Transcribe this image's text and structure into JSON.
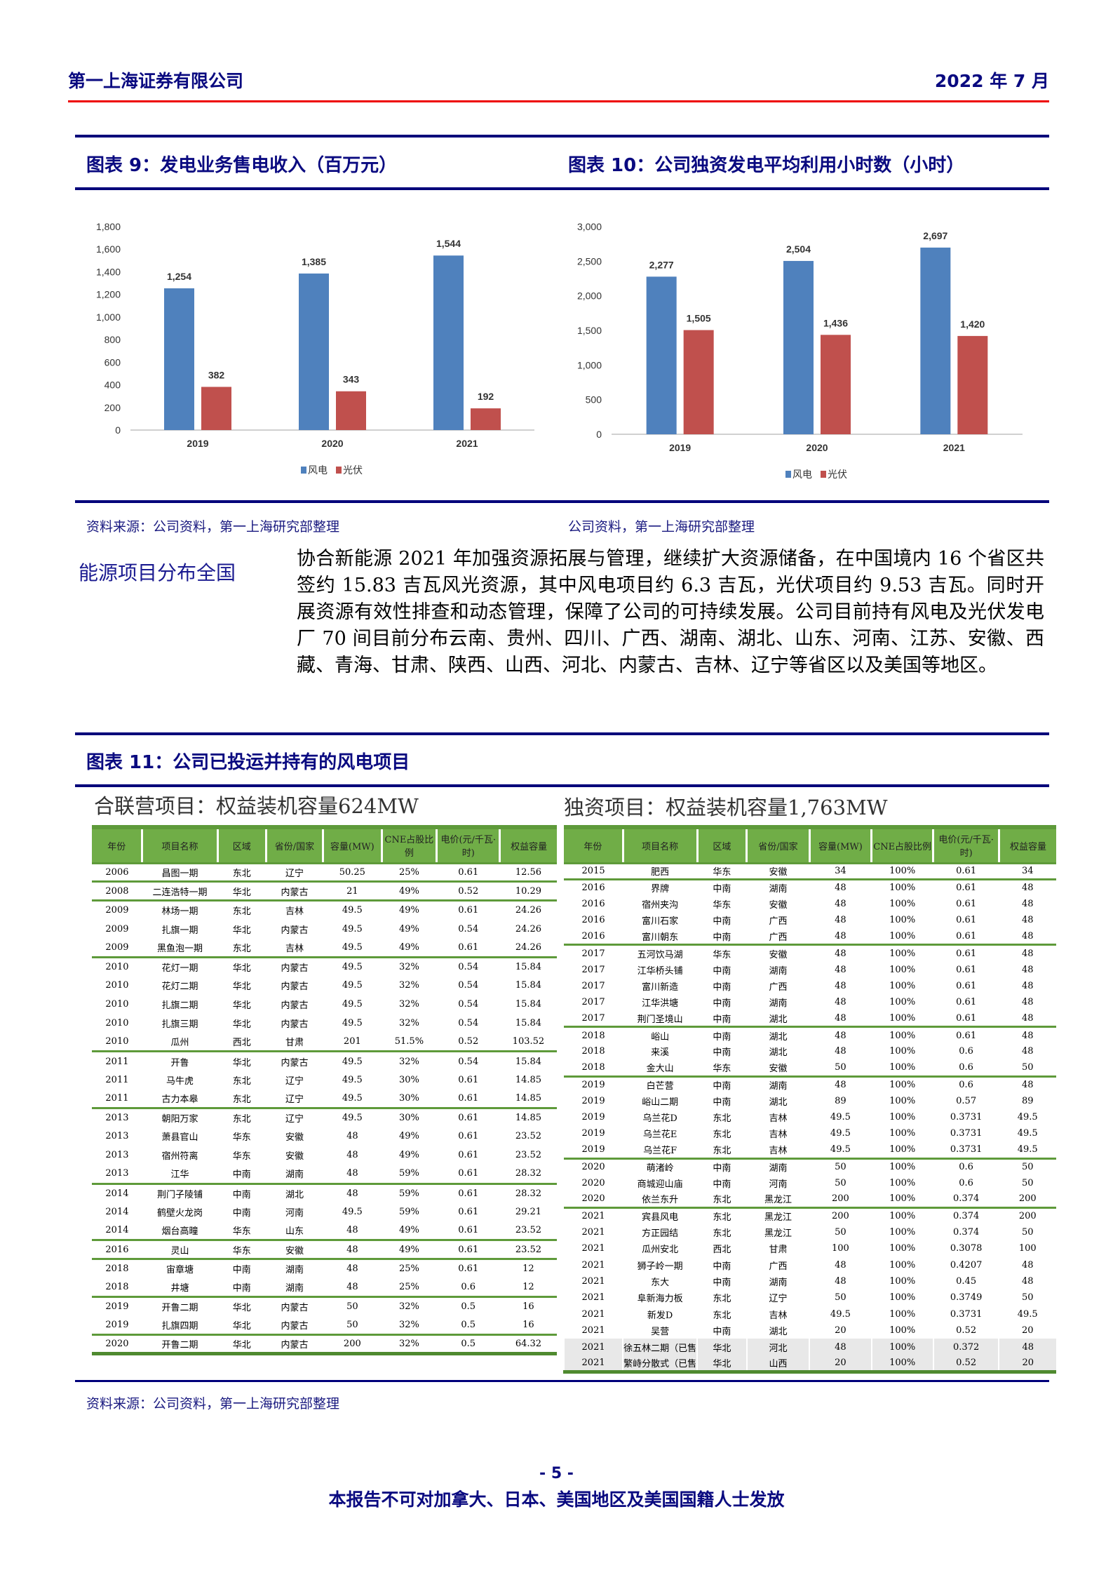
{
  "header": {
    "company": "第一上海证券有限公司",
    "date": "2022 年 7 月"
  },
  "figure9": {
    "title": "图表 9：发电业务售电收入（百万元）",
    "source": "资料来源：公司资料，第一上海研究部整理"
  },
  "figure10": {
    "title": "图表 10：公司独资发电平均利用小时数（小时）",
    "source": "公司资料，第一上海研究部整理"
  },
  "chart_data": [
    {
      "type": "bar",
      "title": "图表 9：发电业务售电收入（百万元）",
      "categories": [
        "2019",
        "2020",
        "2021"
      ],
      "series": [
        {
          "name": "风电",
          "values": [
            1254,
            1385,
            1544
          ],
          "color": "#4f81bd"
        },
        {
          "name": "光伏",
          "values": [
            382,
            343,
            192
          ],
          "color": "#c0504d"
        }
      ],
      "ylim": [
        0,
        1800
      ],
      "yticks": [
        0,
        200,
        400,
        600,
        800,
        1000,
        1200,
        1400,
        1600,
        1800
      ],
      "ytick_labels": [
        "0",
        "200",
        "400",
        "600",
        "800",
        "1,000",
        "1,200",
        "1,400",
        "1,600",
        "1,800"
      ],
      "data_labels": [
        [
          "1,254",
          "1,385",
          "1,544"
        ],
        [
          "382",
          "343",
          "192"
        ]
      ],
      "legend": "bottom",
      "grid": false
    },
    {
      "type": "bar",
      "title": "图表 10：公司独资发电平均利用小时数（小时）",
      "categories": [
        "2019",
        "2020",
        "2021"
      ],
      "series": [
        {
          "name": "风电",
          "values": [
            2277,
            2504,
            2697
          ],
          "color": "#4f81bd"
        },
        {
          "name": "光伏",
          "values": [
            1505,
            1436,
            1420
          ],
          "color": "#c0504d"
        }
      ],
      "ylim": [
        0,
        3000
      ],
      "yticks": [
        0,
        500,
        1000,
        1500,
        2000,
        2500,
        3000
      ],
      "ytick_labels": [
        "0",
        "500",
        "1,000",
        "1,500",
        "2,000",
        "2,500",
        "3,000"
      ],
      "data_labels": [
        [
          "2,277",
          "2,504",
          "2,697"
        ],
        [
          "1,505",
          "1,436",
          "1,420"
        ]
      ],
      "legend": "bottom",
      "grid": false
    }
  ],
  "section": {
    "heading": "能源项目分布全国",
    "body": "协合新能源 2021 年加强资源拓展与管理，继续扩大资源储备，在中国境内 16 个省区共签约 15.83 吉瓦风光资源，其中风电项目约 6.3 吉瓦，光伏项目约 9.53 吉瓦。同时开展资源有效性排查和动态管理，保障了公司的可持续发展。公司目前持有风电及光伏发电厂 70 间目前分布云南、贵州、四川、广西、湖南、湖北、山东、河南、江苏、安徽、西藏、青海、甘肃、陕西、山西、河北、内蒙古、吉林、辽宁等省区以及美国等地区。"
  },
  "figure11": {
    "title": "图表 11：公司已投运并持有的风电项目",
    "source": "资料来源：公司资料，第一上海研究部整理",
    "columns": [
      "年份",
      "项目名称",
      "区域",
      "省份/国家",
      "容量(MW)",
      "CNE占股比例",
      "电价(元/千瓦·时)",
      "权益容量"
    ],
    "jv": {
      "title": "合联营项目：权益装机容量624MW",
      "rows": [
        [
          "2006",
          "昌图一期",
          "东北",
          "辽宁",
          "50.25",
          "25%",
          "0.61",
          "12.56"
        ],
        [
          "2008",
          "二连浩特一期",
          "华北",
          "内蒙古",
          "21",
          "49%",
          "0.52",
          "10.29"
        ],
        [
          "2009",
          "林场一期",
          "东北",
          "吉林",
          "49.5",
          "49%",
          "0.61",
          "24.26"
        ],
        [
          "2009",
          "扎旗一期",
          "华北",
          "内蒙古",
          "49.5",
          "49%",
          "0.54",
          "24.26"
        ],
        [
          "2009",
          "黑鱼泡一期",
          "东北",
          "吉林",
          "49.5",
          "49%",
          "0.61",
          "24.26"
        ],
        [
          "2010",
          "花灯一期",
          "华北",
          "内蒙古",
          "49.5",
          "32%",
          "0.54",
          "15.84"
        ],
        [
          "2010",
          "花灯二期",
          "华北",
          "内蒙古",
          "49.5",
          "32%",
          "0.54",
          "15.84"
        ],
        [
          "2010",
          "扎旗二期",
          "华北",
          "内蒙古",
          "49.5",
          "32%",
          "0.54",
          "15.84"
        ],
        [
          "2010",
          "扎旗三期",
          "华北",
          "内蒙古",
          "49.5",
          "32%",
          "0.54",
          "15.84"
        ],
        [
          "2010",
          "瓜州",
          "西北",
          "甘肃",
          "201",
          "51.5%",
          "0.52",
          "103.52"
        ],
        [
          "2011",
          "开鲁",
          "华北",
          "内蒙古",
          "49.5",
          "32%",
          "0.54",
          "15.84"
        ],
        [
          "2011",
          "马牛虎",
          "东北",
          "辽宁",
          "49.5",
          "30%",
          "0.61",
          "14.85"
        ],
        [
          "2011",
          "古力本皋",
          "东北",
          "辽宁",
          "49.5",
          "30%",
          "0.61",
          "14.85"
        ],
        [
          "2013",
          "朝阳万家",
          "东北",
          "辽宁",
          "49.5",
          "30%",
          "0.61",
          "14.85"
        ],
        [
          "2013",
          "萧县官山",
          "华东",
          "安徽",
          "48",
          "49%",
          "0.61",
          "23.52"
        ],
        [
          "2013",
          "宿州符离",
          "华东",
          "安徽",
          "48",
          "49%",
          "0.61",
          "23.52"
        ],
        [
          "2013",
          "江华",
          "中南",
          "湖南",
          "48",
          "59%",
          "0.61",
          "28.32"
        ],
        [
          "2014",
          "荆门子陵铺",
          "中南",
          "湖北",
          "48",
          "59%",
          "0.61",
          "28.32"
        ],
        [
          "2014",
          "鹤壁火龙岗",
          "中南",
          "河南",
          "49.5",
          "59%",
          "0.61",
          "29.21"
        ],
        [
          "2014",
          "烟台高疃",
          "华东",
          "山东",
          "48",
          "49%",
          "0.61",
          "23.52"
        ],
        [
          "2016",
          "灵山",
          "华东",
          "安徽",
          "48",
          "49%",
          "0.61",
          "23.52"
        ],
        [
          "2018",
          "宙章塘",
          "中南",
          "湖南",
          "48",
          "25%",
          "0.61",
          "12"
        ],
        [
          "2018",
          "井塘",
          "中南",
          "湖南",
          "48",
          "25%",
          "0.6",
          "12"
        ],
        [
          "2019",
          "开鲁二期",
          "华北",
          "内蒙古",
          "50",
          "32%",
          "0.5",
          "16"
        ],
        [
          "2019",
          "扎旗四期",
          "华北",
          "内蒙古",
          "50",
          "32%",
          "0.5",
          "16"
        ],
        [
          "2020",
          "开鲁二期",
          "华北",
          "内蒙古",
          "200",
          "32%",
          "0.5",
          "64.32"
        ]
      ]
    },
    "wholly": {
      "title": "独资项目：权益装机容量1,763MW",
      "rows": [
        [
          "2015",
          "肥西",
          "华东",
          "安徽",
          "34",
          "100%",
          "0.61",
          "34"
        ],
        [
          "2016",
          "界牌",
          "中南",
          "湖南",
          "48",
          "100%",
          "0.61",
          "48"
        ],
        [
          "2016",
          "宿州夹沟",
          "华东",
          "安徽",
          "48",
          "100%",
          "0.61",
          "48"
        ],
        [
          "2016",
          "富川石家",
          "中南",
          "广西",
          "48",
          "100%",
          "0.61",
          "48"
        ],
        [
          "2016",
          "富川朝东",
          "中南",
          "广西",
          "48",
          "100%",
          "0.61",
          "48"
        ],
        [
          "2017",
          "五河饮马湖",
          "华东",
          "安徽",
          "48",
          "100%",
          "0.61",
          "48"
        ],
        [
          "2017",
          "江华桥头铺",
          "中南",
          "湖南",
          "48",
          "100%",
          "0.61",
          "48"
        ],
        [
          "2017",
          "富川新造",
          "中南",
          "广西",
          "48",
          "100%",
          "0.61",
          "48"
        ],
        [
          "2017",
          "江华洪塘",
          "中南",
          "湖南",
          "48",
          "100%",
          "0.61",
          "48"
        ],
        [
          "2017",
          "荆门圣境山",
          "中南",
          "湖北",
          "48",
          "100%",
          "0.61",
          "48"
        ],
        [
          "2018",
          "峪山",
          "中南",
          "湖北",
          "48",
          "100%",
          "0.61",
          "48"
        ],
        [
          "2018",
          "来溪",
          "中南",
          "湖北",
          "48",
          "100%",
          "0.6",
          "48"
        ],
        [
          "2018",
          "金大山",
          "华东",
          "安徽",
          "50",
          "100%",
          "0.6",
          "50"
        ],
        [
          "2019",
          "白芒营",
          "中南",
          "湖南",
          "48",
          "100%",
          "0.6",
          "48"
        ],
        [
          "2019",
          "峪山二期",
          "中南",
          "湖北",
          "89",
          "100%",
          "0.57",
          "89"
        ],
        [
          "2019",
          "乌兰花D",
          "东北",
          "吉林",
          "49.5",
          "100%",
          "0.3731",
          "49.5"
        ],
        [
          "2019",
          "乌兰花E",
          "东北",
          "吉林",
          "49.5",
          "100%",
          "0.3731",
          "49.5"
        ],
        [
          "2019",
          "乌兰花F",
          "东北",
          "吉林",
          "49.5",
          "100%",
          "0.3731",
          "49.5"
        ],
        [
          "2020",
          "萌渚岭",
          "中南",
          "湖南",
          "50",
          "100%",
          "0.6",
          "50"
        ],
        [
          "2020",
          "商城迎山庙",
          "中南",
          "河南",
          "50",
          "100%",
          "0.6",
          "50"
        ],
        [
          "2020",
          "依兰东升",
          "东北",
          "黑龙江",
          "200",
          "100%",
          "0.374",
          "200"
        ],
        [
          "2021",
          "宾县风电",
          "东北",
          "黑龙江",
          "200",
          "100%",
          "0.374",
          "200"
        ],
        [
          "2021",
          "方正园结",
          "东北",
          "黑龙江",
          "50",
          "100%",
          "0.374",
          "50"
        ],
        [
          "2021",
          "瓜州安北",
          "西北",
          "甘肃",
          "100",
          "100%",
          "0.3078",
          "100"
        ],
        [
          "2021",
          "狮子岭一期",
          "中南",
          "广西",
          "48",
          "100%",
          "0.4207",
          "48"
        ],
        [
          "2021",
          "东大",
          "中南",
          "湖南",
          "48",
          "100%",
          "0.45",
          "48"
        ],
        [
          "2021",
          "阜新海力板",
          "东北",
          "辽宁",
          "50",
          "100%",
          "0.3749",
          "50"
        ],
        [
          "2021",
          "新发D",
          "东北",
          "吉林",
          "49.5",
          "100%",
          "0.3731",
          "49.5"
        ],
        [
          "2021",
          "吴营",
          "中南",
          "湖北",
          "20",
          "100%",
          "0.52",
          "20"
        ],
        [
          "2021",
          "徐五林二期（已售）",
          "华北",
          "河北",
          "48",
          "100%",
          "0.372",
          "48"
        ],
        [
          "2021",
          "繁峙分散式（已售）",
          "华北",
          "山西",
          "20",
          "100%",
          "0.52",
          "20"
        ]
      ]
    }
  },
  "footer": {
    "page": "- 5 -",
    "disclaimer": "本报告不可对加拿大、日本、美国地区及美国国籍人士发放"
  }
}
